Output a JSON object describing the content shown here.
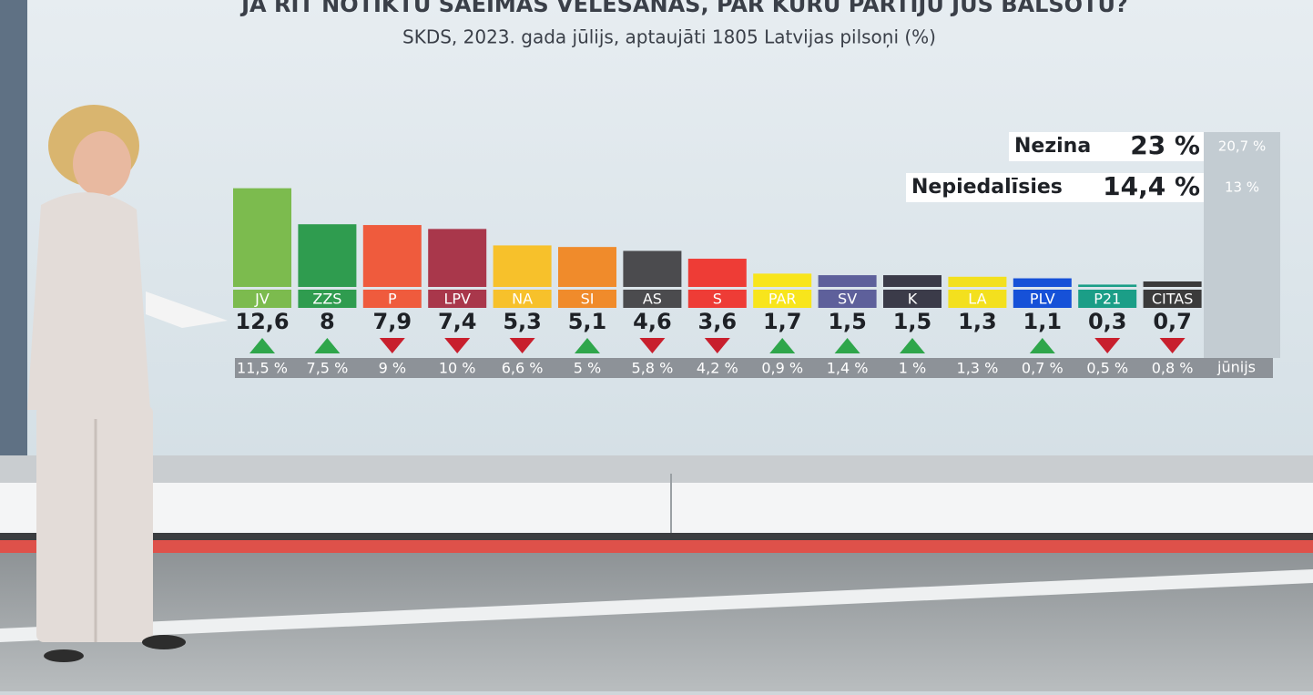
{
  "chart_data": {
    "type": "bar",
    "title": "JA RĪT NOTIKTU SAEIMAS VĒLĒŠANĀS, PAR KURU PARTIJU JŪS BALSOTU?",
    "subtitle": "SKDS, 2023. gada jūlijs, aptaujāti 1805 Latvijas pilsoņi (%)",
    "categories": [
      "JV",
      "ZZS",
      "P",
      "LPV",
      "NA",
      "SI",
      "AS",
      "S",
      "PAR",
      "SV",
      "K",
      "LA",
      "PLV",
      "P21",
      "CITAS"
    ],
    "values": [
      12.6,
      8,
      7.9,
      7.4,
      5.3,
      5.1,
      4.6,
      3.6,
      1.7,
      1.5,
      1.5,
      1.3,
      1.1,
      0.3,
      0.7
    ],
    "value_labels": [
      "12,6",
      "8",
      "7,9",
      "7,4",
      "5,3",
      "5,1",
      "4,6",
      "3,6",
      "1,7",
      "1,5",
      "1,5",
      "1,3",
      "1,1",
      "0,3",
      "0,7"
    ],
    "colors": [
      "#7cbb4e",
      "#2f9c4f",
      "#ef5b3d",
      "#a9374b",
      "#f7c12b",
      "#f08b2b",
      "#4b4b4e",
      "#ee3c36",
      "#f8e51c",
      "#5e609b",
      "#3b3b49",
      "#f3e01e",
      "#1651d8",
      "#1b9e87",
      "#3b3b3b"
    ],
    "previous": {
      "name": "jūnijs",
      "values": [
        11.5,
        7.5,
        9,
        10,
        6.6,
        5,
        5.8,
        4.2,
        0.9,
        1.4,
        1,
        1.3,
        0.7,
        0.5,
        0.8
      ],
      "value_labels": [
        "11,5 %",
        "7,5 %",
        "9 %",
        "10 %",
        "6,6 %",
        "5 %",
        "5,8 %",
        "4,2 %",
        "0,9 %",
        "1,4 %",
        "1 %",
        "1,3 %",
        "0,7 %",
        "0,5 %",
        "0,8 %"
      ]
    },
    "other": [
      {
        "label": "Nezina",
        "value": 23,
        "value_label": "23 %",
        "previous": 20.7,
        "previous_label": "20,7 %"
      },
      {
        "label": "Nepiedalīsies",
        "value": 14.4,
        "value_label": "14,4 %",
        "previous": 13,
        "previous_label": "13 %"
      }
    ]
  }
}
